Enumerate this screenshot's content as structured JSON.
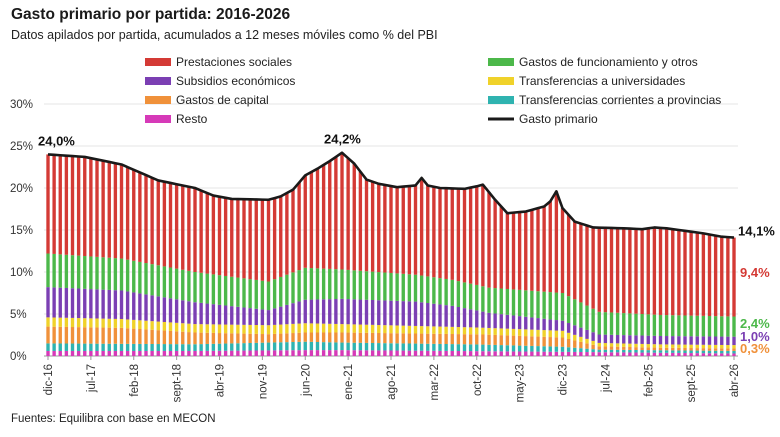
{
  "title": "Gasto primario por partida: 2016-2026",
  "subtitle": "Datos apilados por partida, acumulados a 12 meses móviles como % del PBI",
  "source": "Fuentes: Equilibra con base en MECON",
  "colors": {
    "prestaciones": "#d43a35",
    "funcionamiento": "#4cb84a",
    "subsidios": "#7b3fb3",
    "universidades": "#f0d22a",
    "capital": "#f0913a",
    "provincias": "#2fb3b0",
    "resto": "#d63ab8",
    "total": "#1a1a1a"
  },
  "chart_data": {
    "type": "bar",
    "stacked": true,
    "x_tick_labels": [
      "dic-16",
      "jul-17",
      "feb-18",
      "sept-18",
      "abr-19",
      "nov-19",
      "jun-20",
      "ene-21",
      "ago-21",
      "mar-22",
      "oct-22",
      "may-23",
      "dic-23",
      "jul-24",
      "feb-25",
      "sept-25",
      "abr-26"
    ],
    "y_ticks": [
      "0%",
      "5%",
      "10%",
      "15%",
      "20%",
      "25%",
      "30%"
    ],
    "ylim": [
      0,
      30
    ],
    "x_range": [
      "dic-16",
      "abr-26"
    ],
    "grid": true,
    "legend_position": "top",
    "series": [
      {
        "name": "Resto",
        "key": "resto",
        "anchors": [
          [
            0,
            0.6
          ],
          [
            24,
            0.6
          ],
          [
            42,
            0.7
          ],
          [
            48,
            0.7
          ],
          [
            84,
            0.5
          ],
          [
            112,
            0.3
          ]
        ]
      },
      {
        "name": "Transferencias corrientes a provincias",
        "key": "provincias",
        "anchors": [
          [
            0,
            0.9
          ],
          [
            24,
            0.8
          ],
          [
            42,
            1.0
          ],
          [
            48,
            0.9
          ],
          [
            70,
            0.8
          ],
          [
            84,
            0.6
          ],
          [
            90,
            0.3
          ],
          [
            112,
            0.3
          ]
        ]
      },
      {
        "name": "Gastos de capital",
        "key": "capital",
        "anchors": [
          [
            0,
            2.0
          ],
          [
            12,
            1.9
          ],
          [
            24,
            1.4
          ],
          [
            36,
            1.0
          ],
          [
            42,
            1.1
          ],
          [
            48,
            1.2
          ],
          [
            60,
            1.2
          ],
          [
            72,
            1.2
          ],
          [
            84,
            1.1
          ],
          [
            90,
            0.4
          ],
          [
            100,
            0.3
          ],
          [
            112,
            0.3
          ]
        ]
      },
      {
        "name": "Transferencias a universidades",
        "key": "universidades",
        "anchors": [
          [
            0,
            1.1
          ],
          [
            24,
            1.0
          ],
          [
            42,
            1.1
          ],
          [
            48,
            1.0
          ],
          [
            72,
            0.8
          ],
          [
            84,
            0.8
          ],
          [
            90,
            0.4
          ],
          [
            112,
            0.4
          ]
        ]
      },
      {
        "name": "Subsidios económicos",
        "key": "subsidios",
        "anchors": [
          [
            0,
            3.6
          ],
          [
            12,
            3.4
          ],
          [
            24,
            2.6
          ],
          [
            36,
            1.8
          ],
          [
            42,
            2.8
          ],
          [
            48,
            3.0
          ],
          [
            60,
            2.9
          ],
          [
            66,
            2.5
          ],
          [
            72,
            1.8
          ],
          [
            84,
            1.2
          ],
          [
            90,
            1.0
          ],
          [
            100,
            1.0
          ],
          [
            112,
            1.0
          ]
        ]
      },
      {
        "name": "Gastos de funcionamiento y otros",
        "key": "funcionamiento",
        "anchors": [
          [
            0,
            4.0
          ],
          [
            24,
            3.6
          ],
          [
            36,
            3.4
          ],
          [
            42,
            3.8
          ],
          [
            48,
            3.5
          ],
          [
            60,
            3.2
          ],
          [
            72,
            3.0
          ],
          [
            84,
            3.3
          ],
          [
            90,
            2.7
          ],
          [
            100,
            2.5
          ],
          [
            112,
            2.4
          ]
        ]
      },
      {
        "name": "Prestaciones sociales",
        "key": "prestaciones",
        "anchors": [
          [
            0,
            11.8
          ],
          [
            12,
            11.2
          ],
          [
            24,
            11.3
          ],
          [
            36,
            11.1
          ],
          [
            41,
            12.5
          ],
          [
            48,
            12.0
          ],
          [
            60,
            11.3
          ],
          [
            66,
            11.1
          ],
          [
            72,
            10.3
          ],
          [
            84,
            10.1
          ],
          [
            90,
            10.4
          ],
          [
            100,
            10.3
          ],
          [
            112,
            9.4
          ]
        ]
      }
    ],
    "total_series": {
      "name": "Gasto primario",
      "key": "total",
      "anchors": [
        [
          0,
          24.0
        ],
        [
          6,
          23.7
        ],
        [
          12,
          22.8
        ],
        [
          18,
          20.9
        ],
        [
          24,
          20.0
        ],
        [
          27,
          19.1
        ],
        [
          30,
          18.7
        ],
        [
          36,
          18.6
        ],
        [
          38,
          19.0
        ],
        [
          40,
          19.8
        ],
        [
          42,
          21.5
        ],
        [
          44,
          22.3
        ],
        [
          46,
          23.2
        ],
        [
          48,
          24.2
        ],
        [
          50,
          22.9
        ],
        [
          52,
          21.0
        ],
        [
          54,
          20.5
        ],
        [
          57,
          20.1
        ],
        [
          60,
          20.3
        ],
        [
          61,
          21.2
        ],
        [
          62,
          20.3
        ],
        [
          64,
          20.0
        ],
        [
          68,
          19.9
        ],
        [
          70,
          20.2
        ],
        [
          71,
          20.4
        ],
        [
          73,
          18.6
        ],
        [
          75,
          17.0
        ],
        [
          78,
          17.2
        ],
        [
          81,
          17.8
        ],
        [
          82,
          18.4
        ],
        [
          83,
          19.6
        ],
        [
          84,
          17.6
        ],
        [
          86,
          16.0
        ],
        [
          89,
          15.3
        ],
        [
          94,
          15.2
        ],
        [
          97,
          15.1
        ],
        [
          99,
          15.3
        ],
        [
          101,
          15.2
        ],
        [
          104,
          14.9
        ],
        [
          107,
          14.6
        ],
        [
          110,
          14.2
        ],
        [
          112,
          14.1
        ]
      ]
    },
    "annotations": [
      {
        "text": "24,0%",
        "key": "total",
        "index": 0
      },
      {
        "text": "24,2%",
        "key": "total",
        "index": 48
      },
      {
        "text": "14,1%",
        "key": "total",
        "index": 112
      },
      {
        "text": "9,4%",
        "key": "prestaciones",
        "index": 112
      },
      {
        "text": "2,4%",
        "key": "funcionamiento",
        "index": 112
      },
      {
        "text": "1,0%",
        "key": "subsidios",
        "index": 112
      },
      {
        "text": "0,3%",
        "key": "capital",
        "index": 112
      }
    ]
  }
}
